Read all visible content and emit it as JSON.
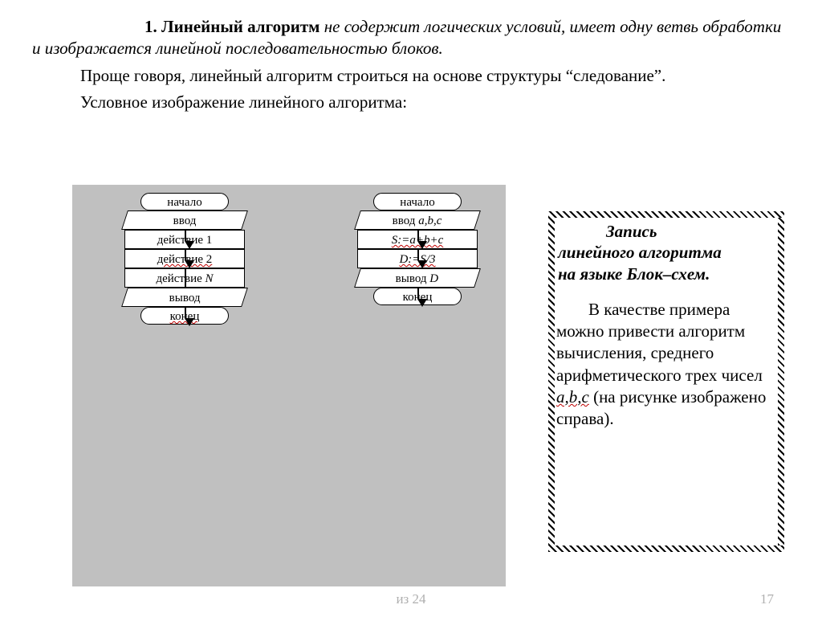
{
  "text": {
    "p1_lead": "1. Линейный алгоритм",
    "p1_rest": " не содержит логических условий, имеет одну ветвь обработки и изображается линейной последовательностью блоков.",
    "p2": "Проще говоря, линейный алгоритм строиться на основе структуры “следование”.",
    "p3": "Условное изображение линейного алгоритма:"
  },
  "flowchart": {
    "type": "flowchart",
    "background_color": "#c0c0c0",
    "node_fill": "#ffffff",
    "node_border": "#000000",
    "arrow_color": "#000000",
    "font_size": 15,
    "columns": [
      {
        "nodes": [
          {
            "shape": "terminator",
            "label": "начало"
          },
          {
            "shape": "io",
            "label": "ввод"
          },
          {
            "shape": "process",
            "label": "действие 1"
          },
          {
            "shape": "process",
            "label": "действие 2",
            "underline": true
          },
          {
            "shape": "process",
            "label_italic": "действие N",
            "label": "действие ",
            "ital_tail": "N"
          },
          {
            "shape": "io",
            "label": "вывод"
          },
          {
            "shape": "terminator",
            "label": "конец",
            "underline": true
          }
        ],
        "arrow_heights": [
          14,
          14,
          14,
          32,
          14,
          14
        ]
      },
      {
        "nodes": [
          {
            "shape": "terminator",
            "label": "начало"
          },
          {
            "shape": "io",
            "label": "ввод ",
            "ital_tail": "a,b,c"
          },
          {
            "shape": "process",
            "label": "S:=a+b+c",
            "underline": true,
            "italic": true
          },
          {
            "shape": "process",
            "label": "D:=S/3",
            "underline": true,
            "italic": true
          },
          {
            "shape": "io",
            "label": "вывод ",
            "ital_tail": "D"
          },
          {
            "shape": "terminator",
            "label": "конец"
          }
        ],
        "arrow_heights": [
          14,
          14,
          14,
          14,
          14
        ]
      }
    ]
  },
  "rbox": {
    "title_line1": "Запись",
    "title_line2": "линейного алгоритма",
    "title_line3": "на языке Блок–схем.",
    "body_pre": "В качестве примера можно привести алгоритм вычисления, среднего арифметического трех чисел ",
    "body_vars": "a,b,c",
    "body_post": " (на рисунке изображено справа)."
  },
  "footer": {
    "of": "из 24",
    "page": "17"
  },
  "styling": {
    "page_bg": "#ffffff",
    "text_color": "#000000",
    "footer_color": "#b0b0b0",
    "wavy_underline_color": "#c00000",
    "body_font_size_pt": 16,
    "font_family": "Times New Roman"
  }
}
